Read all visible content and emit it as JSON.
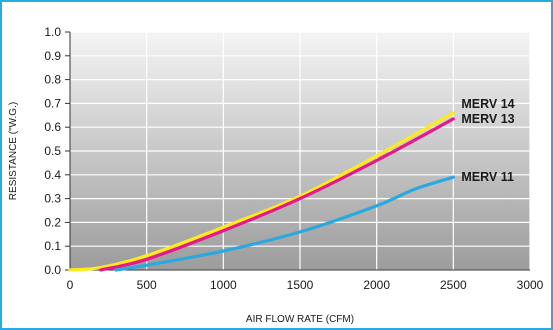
{
  "frame_color": "#27a9e1",
  "chart_data": {
    "type": "line",
    "title": "",
    "xlabel": "AIR FLOW RATE (CFM)",
    "ylabel": "RESISTANCE (\"W.G.)",
    "xlim": [
      0,
      3000
    ],
    "ylim": [
      0,
      1.0
    ],
    "x_ticks": [
      "0",
      "500",
      "1000",
      "1500",
      "2000",
      "2500",
      "3000"
    ],
    "y_ticks": [
      "0.0",
      "0.1",
      "0.2",
      "0.3",
      "0.4",
      "0.5",
      "0.6",
      "0.7",
      "0.8",
      "0.9",
      "1.0"
    ],
    "x_tick_values": [
      0,
      500,
      1000,
      1500,
      2000,
      2500,
      3000
    ],
    "y_tick_values": [
      0,
      0.1,
      0.2,
      0.3,
      0.4,
      0.5,
      0.6,
      0.7,
      0.8,
      0.9,
      1.0
    ],
    "grid": true,
    "legend": "none",
    "series": [
      {
        "name": "MERV 14",
        "color": "#ffea1f",
        "points": [
          [
            0,
            0.0
          ],
          [
            200,
            0.01
          ],
          [
            500,
            0.06
          ],
          [
            1000,
            0.18
          ],
          [
            1500,
            0.31
          ],
          [
            2000,
            0.48
          ],
          [
            2500,
            0.66
          ]
        ]
      },
      {
        "name": "MERV 13",
        "color": "#e6198c",
        "points": [
          [
            200,
            0.0
          ],
          [
            500,
            0.045
          ],
          [
            1000,
            0.165
          ],
          [
            1500,
            0.3
          ],
          [
            2000,
            0.46
          ],
          [
            2500,
            0.635
          ]
        ]
      },
      {
        "name": "MERV 11",
        "color": "#2aa8e0",
        "points": [
          [
            300,
            0.0
          ],
          [
            500,
            0.02
          ],
          [
            1000,
            0.08
          ],
          [
            1500,
            0.16
          ],
          [
            2000,
            0.27
          ],
          [
            2250,
            0.34
          ],
          [
            2500,
            0.39
          ]
        ]
      }
    ]
  }
}
